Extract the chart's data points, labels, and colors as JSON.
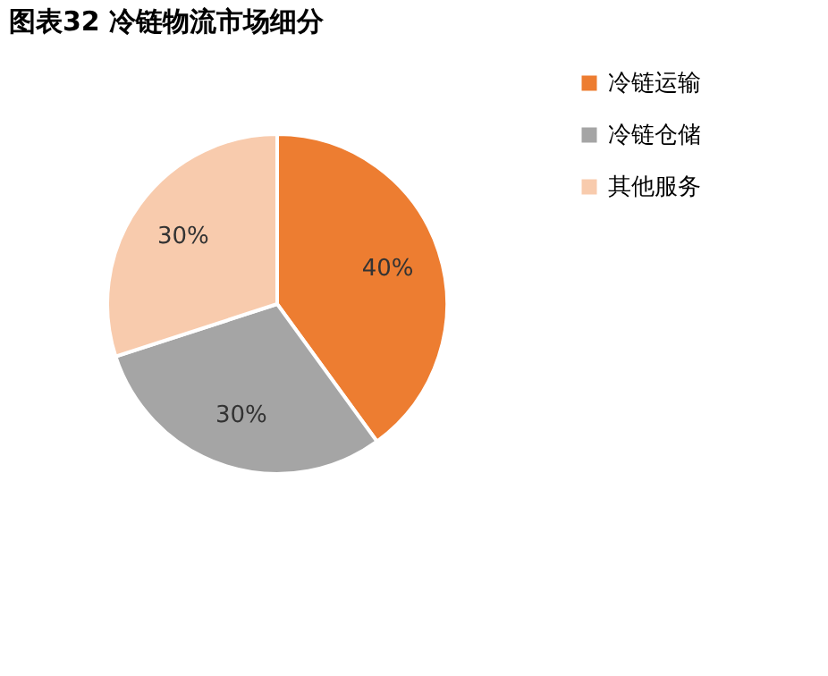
{
  "chart_data": {
    "type": "pie",
    "title": "图表32    冷链物流市场细分",
    "categories": [
      "冷链运输",
      "冷链仓储",
      "其他服务"
    ],
    "values": [
      40,
      30,
      30
    ],
    "colors": [
      "#ed7d31",
      "#a5a5a5",
      "#f8cbad"
    ],
    "value_labels": [
      "40%",
      "30%",
      "30%"
    ],
    "legend": "right"
  }
}
